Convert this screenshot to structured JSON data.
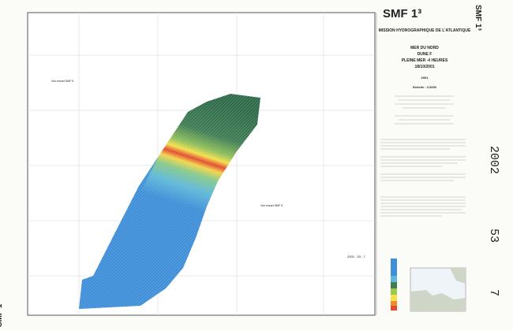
{
  "header": {
    "title": "SMF 1³",
    "organization": "MISSION HYDROGRAPHIQUE DE L'ATLANTIQUE",
    "area": "MER DU NORD",
    "feature": "DUNE F",
    "tide": "PLEINE MER -4 HEURES",
    "date": "18/10/2001",
    "year": "2001",
    "scale": "Echelle : 1/1000"
  },
  "map": {
    "inset_labels": [
      "Voir encart SMF 5",
      "Voir encart SMF 5"
    ],
    "stamp": "2002 - 53 - 7"
  },
  "stamps": {
    "year": "2002",
    "number": "53",
    "sheet": "7",
    "corner": "SMF 1³"
  }
}
